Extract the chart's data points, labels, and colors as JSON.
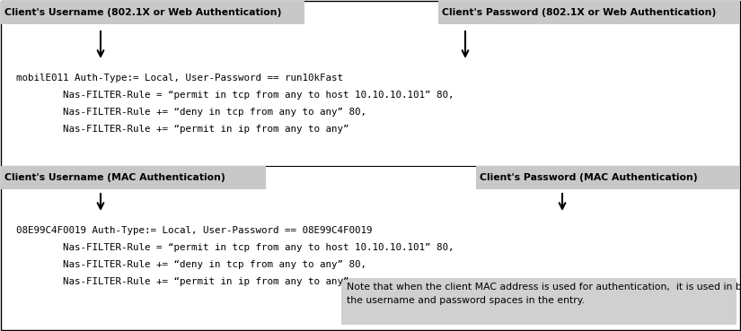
{
  "bg_color": "#ffffff",
  "border_color": "#000000",
  "label_bg": "#c8c8c8",
  "note_bg": "#d0d0d0",
  "fig_width": 8.25,
  "fig_height": 3.69,
  "dpi": 100,
  "label1": "Client's Username (802.1X or Web Authentication)",
  "label2": "Client's Password (802.1X or Web Authentication)",
  "label3": "Client's Username (MAC Authentication)",
  "label4": "Client's Password (MAC Authentication)",
  "code_line1": "mobilE011 Auth-Type:= Local, User-Password == run10kFast",
  "code_line2": "        Nas-FILTER-Rule = “permit in tcp from any to host 10.10.10.101” 80,",
  "code_line3": "        Nas-FILTER-Rule += “deny in tcp from any to any” 80,",
  "code_line4": "        Nas-FILTER-Rule += “permit in ip from any to any”",
  "code_line5": "08E99C4F0019 Auth-Type:= Local, User-Password == 08E99C4F0019",
  "code_line6": "        Nas-FILTER-Rule = “permit in tcp from any to host 10.10.10.101” 80,",
  "code_line7": "        Nas-FILTER-Rule += “deny in tcp from any to any” 80,",
  "code_line8": "        Nas-FILTER-Rule += “permit in ip from any to any”",
  "note_text": "Note that when the client MAC address is used for authentication,  it is used in both\nthe username and password spaces in the entry.",
  "code_font_size": 7.8,
  "label_font_size": 7.8,
  "note_font_size": 7.8
}
